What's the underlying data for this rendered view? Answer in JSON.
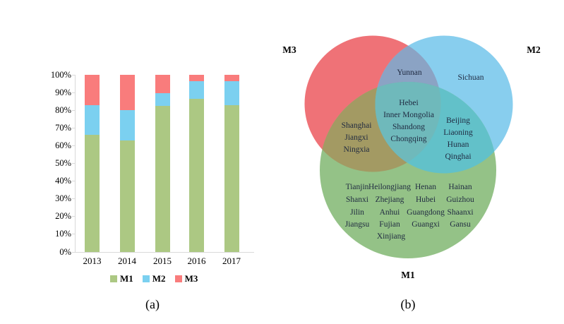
{
  "figure": {
    "captions": {
      "a": "(a)",
      "b": "(b)"
    }
  },
  "chart_data": [
    {
      "type": "bar",
      "subtype": "stacked-100-percent",
      "title": "(a)",
      "categories": [
        "2013",
        "2014",
        "2015",
        "2016",
        "2017"
      ],
      "series": [
        {
          "name": "M1",
          "color": "#acc883",
          "values": [
            66,
            63,
            82.5,
            86.5,
            83
          ]
        },
        {
          "name": "M2",
          "color": "#7bd0f0",
          "values": [
            17,
            17,
            7,
            10,
            13.5
          ]
        },
        {
          "name": "M3",
          "color": "#f97c7c",
          "values": [
            17,
            20,
            10.5,
            3.5,
            3.5
          ]
        }
      ],
      "y_ticks": [
        "0%",
        "10%",
        "20%",
        "30%",
        "40%",
        "50%",
        "60%",
        "70%",
        "80%",
        "90%",
        "100%"
      ],
      "ylim": [
        0,
        100
      ],
      "xlabel": "",
      "ylabel": "",
      "grid": false,
      "legend": [
        "M1",
        "M2",
        "M3"
      ],
      "legend_position": "bottom"
    },
    {
      "type": "venn",
      "title": "(b)",
      "sets": [
        "M1",
        "M2",
        "M3"
      ],
      "set_labels": {
        "m1": "M1",
        "m2": "M2",
        "m3": "M3"
      },
      "regions": {
        "M3_only": [],
        "M2_only": [
          "Sichuan"
        ],
        "M3_and_M2": [
          "Yunnan"
        ],
        "M1_and_M2_and_M3": [
          "Hebei",
          "Inner Mongolia",
          "Shandong",
          "Chongqing"
        ],
        "M1_and_M3": [
          "Shanghai",
          "Jiangxi",
          "Ningxia"
        ],
        "M1_and_M2": [
          "Beijing",
          "Liaoning",
          "Hunan",
          "Qinghai"
        ],
        "M1_only": [
          "Tianjin",
          "Heilongjiang",
          "Henan",
          "Hainan",
          "Shanxi",
          "Zhejiang",
          "Hubei",
          "Guizhou",
          "Jilin",
          "Anhui",
          "Guangdong",
          "Shaanxi",
          "Jiangsu",
          "Fujian",
          "Guangxi",
          "Gansu",
          "Xinjiang"
        ]
      }
    }
  ],
  "colors": {
    "bar_m1": "#acc883",
    "bar_m2": "#7bd0f0",
    "bar_m3": "#f97c7c",
    "axis": "#d9d9d9",
    "venn_m3": "#ef7277",
    "venn_m2": "#88ceee",
    "venn_m1": "#94c287",
    "venn_m3_m2": "#8ba3c4",
    "venn_m3_m1": "#a39a63",
    "venn_m2_m1": "#62c1c9",
    "venn_center": "#6fb9bb",
    "venn_text": "#1f2940"
  }
}
